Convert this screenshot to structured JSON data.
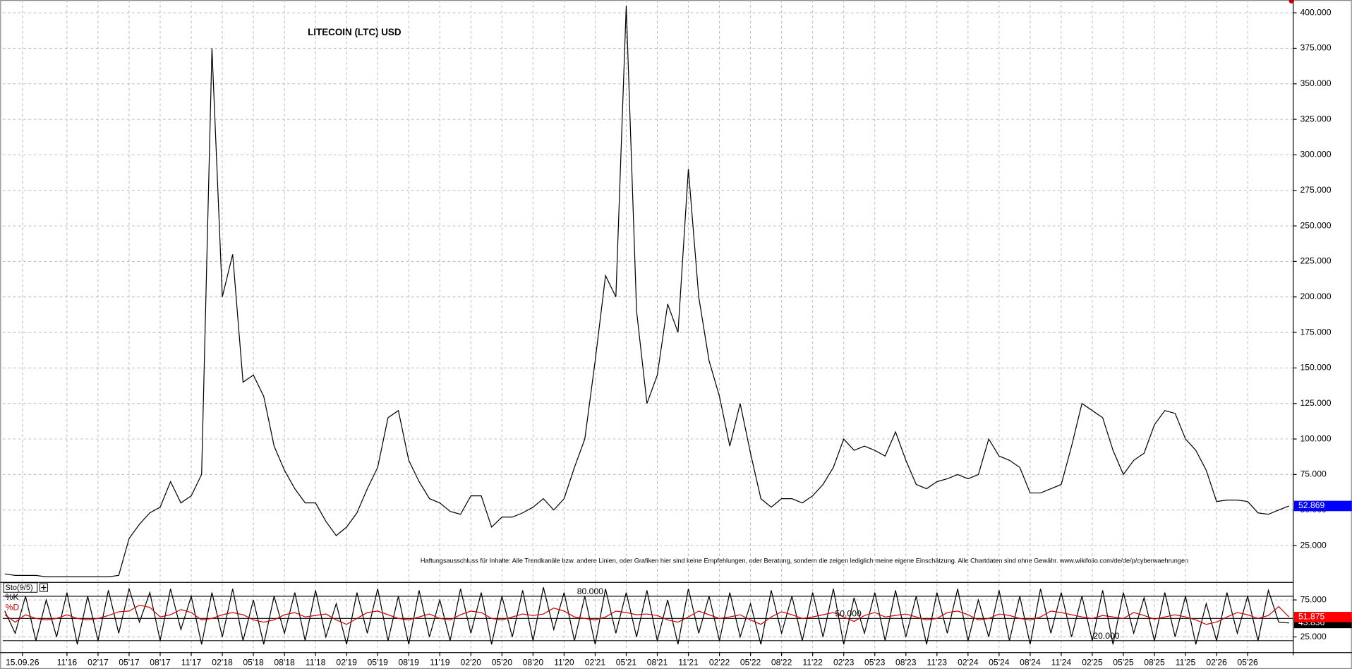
{
  "chart_data": [
    {
      "type": "line",
      "title": "LITECOIN (LTC) USD",
      "annotation": "Haftungsausschluss für Inhalte: Alle Trendkanäle bzw. andere Linien, oder Grafiken hier sind keine Empfehlungen, oder Beratung, sondern die zeigen lediglich meine eigene Einschätzung. Alle Chartdaten sind ohne Gewähr. www.wikifolio.com/de/de/p/cyberwaehrungen",
      "x": [
        -4,
        -3,
        -2,
        -1,
        0,
        1,
        2,
        3,
        4,
        5,
        6,
        7,
        8,
        9,
        10,
        11,
        12,
        13,
        14,
        15,
        16,
        17,
        18,
        19,
        20,
        21,
        22,
        23,
        24,
        25,
        26,
        27,
        28,
        29,
        30,
        31,
        32,
        33,
        34,
        35,
        36,
        37,
        38,
        39,
        40,
        41,
        42,
        43,
        44,
        45,
        46,
        47,
        48,
        49,
        50,
        51,
        52,
        53,
        54,
        55,
        56,
        57,
        58,
        59,
        60,
        61,
        62,
        63,
        64,
        65,
        66,
        67,
        68,
        69,
        70,
        71,
        72,
        73,
        74,
        75,
        76,
        77,
        78,
        79,
        80,
        81,
        82,
        83,
        84,
        85,
        86,
        87,
        88,
        89,
        90,
        91,
        92,
        93,
        94,
        95,
        96,
        97,
        98,
        99,
        100,
        101,
        102,
        103,
        104,
        105,
        106,
        107,
        108,
        109,
        110,
        111,
        112,
        113,
        114,
        115,
        116,
        117,
        118,
        119,
        120
      ],
      "series": [
        {
          "color": "#000000",
          "value_label": "52.869",
          "label_color": "#0000ff",
          "values": [
            5,
            4,
            4,
            4,
            3,
            3,
            3,
            3,
            3,
            3,
            3,
            4,
            30,
            40,
            48,
            52,
            70,
            55,
            60,
            75,
            375,
            200,
            230,
            140,
            145,
            130,
            95,
            78,
            65,
            55,
            55,
            42,
            32,
            38,
            48,
            65,
            80,
            115,
            120,
            85,
            70,
            58,
            55,
            49,
            47,
            60,
            60,
            38,
            45,
            45,
            48,
            52,
            58,
            50,
            58,
            80,
            100,
            155,
            215,
            200,
            405,
            190,
            125,
            145,
            195,
            175,
            290,
            200,
            155,
            130,
            95,
            125,
            90,
            58,
            52,
            58,
            58,
            55,
            60,
            68,
            80,
            100,
            92,
            95,
            92,
            88,
            105,
            85,
            68,
            65,
            70,
            72,
            75,
            72,
            75,
            100,
            88,
            85,
            80,
            62,
            62,
            65,
            68,
            95,
            125,
            120,
            115,
            92,
            75,
            85,
            90,
            110,
            120,
            118,
            100,
            92,
            78,
            56,
            57,
            57,
            56,
            48,
            47,
            50,
            52.869
          ]
        }
      ],
      "xlim": [
        -4.2,
        120.4
      ],
      "xticks": [
        {
          "value": -2.3,
          "label": "15.09.26"
        },
        {
          "value": 2,
          "label": "11'16"
        },
        {
          "value": 5,
          "label": "02'17"
        },
        {
          "value": 8,
          "label": "05'17"
        },
        {
          "value": 11,
          "label": "08'17"
        },
        {
          "value": 14,
          "label": "11'17"
        },
        {
          "value": 17,
          "label": "02'18"
        },
        {
          "value": 20,
          "label": "05'18"
        },
        {
          "value": 23,
          "label": "08'18"
        },
        {
          "value": 26,
          "label": "11'18"
        },
        {
          "value": 29,
          "label": "02'19"
        },
        {
          "value": 32,
          "label": "05'19"
        },
        {
          "value": 35,
          "label": "08'19"
        },
        {
          "value": 38,
          "label": "11'19"
        },
        {
          "value": 41,
          "label": "02'20"
        },
        {
          "value": 44,
          "label": "05'20"
        },
        {
          "value": 47,
          "label": "08'20"
        },
        {
          "value": 50,
          "label": "11'20"
        },
        {
          "value": 53,
          "label": "02'21"
        },
        {
          "value": 56,
          "label": "05'21"
        },
        {
          "value": 59,
          "label": "08'21"
        },
        {
          "value": 62,
          "label": "11'21"
        },
        {
          "value": 65,
          "label": "02'22"
        },
        {
          "value": 68,
          "label": "05'22"
        },
        {
          "value": 71,
          "label": "08'22"
        },
        {
          "value": 74,
          "label": "11'22"
        },
        {
          "value": 77,
          "label": "02'23"
        },
        {
          "value": 80,
          "label": "05'23"
        },
        {
          "value": 83,
          "label": "08'23"
        },
        {
          "value": 86,
          "label": "11'23"
        },
        {
          "value": 89,
          "label": "02'24"
        },
        {
          "value": 92,
          "label": "05'24"
        },
        {
          "value": 95,
          "label": "08'24"
        },
        {
          "value": 98,
          "label": "11'24"
        },
        {
          "value": 101,
          "label": "02'25"
        },
        {
          "value": 104,
          "label": "05'25"
        },
        {
          "value": 107,
          "label": "08'25"
        },
        {
          "value": 110,
          "label": "11'25"
        },
        {
          "value": 113,
          "label": "02'26"
        },
        {
          "value": 116,
          "label": "05'26"
        }
      ],
      "ylim": [
        0,
        409
      ],
      "yticks": [
        {
          "value": 25,
          "label": "25.000"
        },
        {
          "value": 50,
          "label": "50.000"
        },
        {
          "value": 75,
          "label": "75.000"
        },
        {
          "value": 100,
          "label": "100.000"
        },
        {
          "value": 125,
          "label": "125.000"
        },
        {
          "value": 150,
          "label": "150.000"
        },
        {
          "value": 175,
          "label": "175.000"
        },
        {
          "value": 200,
          "label": "200.000"
        },
        {
          "value": 225,
          "label": "225.000"
        },
        {
          "value": 250,
          "label": "250.000"
        },
        {
          "value": 275,
          "label": "275.000"
        },
        {
          "value": 300,
          "label": "300.000"
        },
        {
          "value": 325,
          "label": "325.000"
        },
        {
          "value": 350,
          "label": "350.000"
        },
        {
          "value": 375,
          "label": "375.000"
        },
        {
          "value": 400,
          "label": "400.000"
        }
      ],
      "grid": true
    },
    {
      "type": "line",
      "title": "Sto(9/5)",
      "x": [
        -4,
        -3,
        -2,
        -1,
        0,
        1,
        2,
        3,
        4,
        5,
        6,
        7,
        8,
        9,
        10,
        11,
        12,
        13,
        14,
        15,
        16,
        17,
        18,
        19,
        20,
        21,
        22,
        23,
        24,
        25,
        26,
        27,
        28,
        29,
        30,
        31,
        32,
        33,
        34,
        35,
        36,
        37,
        38,
        39,
        40,
        41,
        42,
        43,
        44,
        45,
        46,
        47,
        48,
        49,
        50,
        51,
        52,
        53,
        54,
        55,
        56,
        57,
        58,
        59,
        60,
        61,
        62,
        63,
        64,
        65,
        66,
        67,
        68,
        69,
        70,
        71,
        72,
        73,
        74,
        75,
        76,
        77,
        78,
        79,
        80,
        81,
        82,
        83,
        84,
        85,
        86,
        87,
        88,
        89,
        90,
        91,
        92,
        93,
        94,
        95,
        96,
        97,
        98,
        99,
        100,
        101,
        102,
        103,
        104,
        105,
        106,
        107,
        108,
        109,
        110,
        111,
        112,
        113,
        114,
        115,
        116,
        117,
        118,
        119,
        120
      ],
      "series": [
        {
          "name": "%K",
          "color": "#000000",
          "value_label": "43.836",
          "label_color": "#000000",
          "values": [
            60,
            30,
            80,
            20,
            75,
            25,
            85,
            15,
            80,
            20,
            88,
            30,
            90,
            45,
            85,
            20,
            90,
            35,
            80,
            15,
            85,
            25,
            90,
            20,
            75,
            15,
            80,
            30,
            85,
            20,
            88,
            25,
            70,
            15,
            85,
            30,
            90,
            20,
            80,
            15,
            88,
            25,
            75,
            20,
            90,
            30,
            85,
            15,
            80,
            25,
            88,
            20,
            92,
            35,
            85,
            20,
            80,
            15,
            90,
            30,
            85,
            25,
            88,
            20,
            75,
            15,
            90,
            30,
            80,
            20,
            85,
            25,
            70,
            15,
            88,
            30,
            80,
            20,
            85,
            25,
            90,
            15,
            78,
            30,
            85,
            20,
            88,
            25,
            80,
            15,
            85,
            30,
            90,
            20,
            75,
            25,
            88,
            20,
            80,
            15,
            90,
            30,
            85,
            25,
            80,
            20,
            88,
            15,
            85,
            30,
            78,
            20,
            85,
            25,
            80,
            15,
            70,
            20,
            85,
            30,
            80,
            20,
            88,
            45,
            43.836
          ]
        },
        {
          "name": "%D",
          "color": "#d00000",
          "value_label": "51.875",
          "label_color": "#ff0000",
          "values": [
            55,
            45,
            55,
            50,
            48,
            50,
            55,
            50,
            48,
            50,
            54,
            59,
            60,
            68,
            65,
            52,
            55,
            62,
            58,
            48,
            50,
            55,
            58,
            55,
            48,
            45,
            48,
            55,
            58,
            52,
            54,
            56,
            48,
            42,
            50,
            58,
            60,
            55,
            50,
            48,
            52,
            56,
            50,
            48,
            55,
            60,
            58,
            50,
            48,
            52,
            56,
            54,
            56,
            64,
            60,
            52,
            50,
            48,
            52,
            60,
            58,
            55,
            56,
            54,
            48,
            45,
            52,
            60,
            55,
            50,
            52,
            55,
            48,
            42,
            52,
            59,
            55,
            50,
            52,
            55,
            58,
            52,
            46,
            54,
            58,
            52,
            54,
            56,
            52,
            48,
            50,
            58,
            60,
            55,
            48,
            50,
            56,
            54,
            50,
            48,
            52,
            60,
            58,
            55,
            52,
            50,
            54,
            52,
            50,
            58,
            54,
            49,
            52,
            55,
            52,
            48,
            42,
            45,
            52,
            58,
            55,
            50,
            54,
            66,
            51.875
          ]
        }
      ],
      "xlim": [
        -4.2,
        120.4
      ],
      "ylim": [
        5,
        97
      ],
      "yticks": [
        {
          "value": 25,
          "label": "25.000"
        },
        {
          "value": 75,
          "label": "75.000"
        }
      ],
      "levels": [
        {
          "value": 80,
          "label": "80.000"
        },
        {
          "value": 50,
          "label": "50.000"
        },
        {
          "value": 20,
          "label": "20.000"
        }
      ],
      "grid": true
    }
  ]
}
